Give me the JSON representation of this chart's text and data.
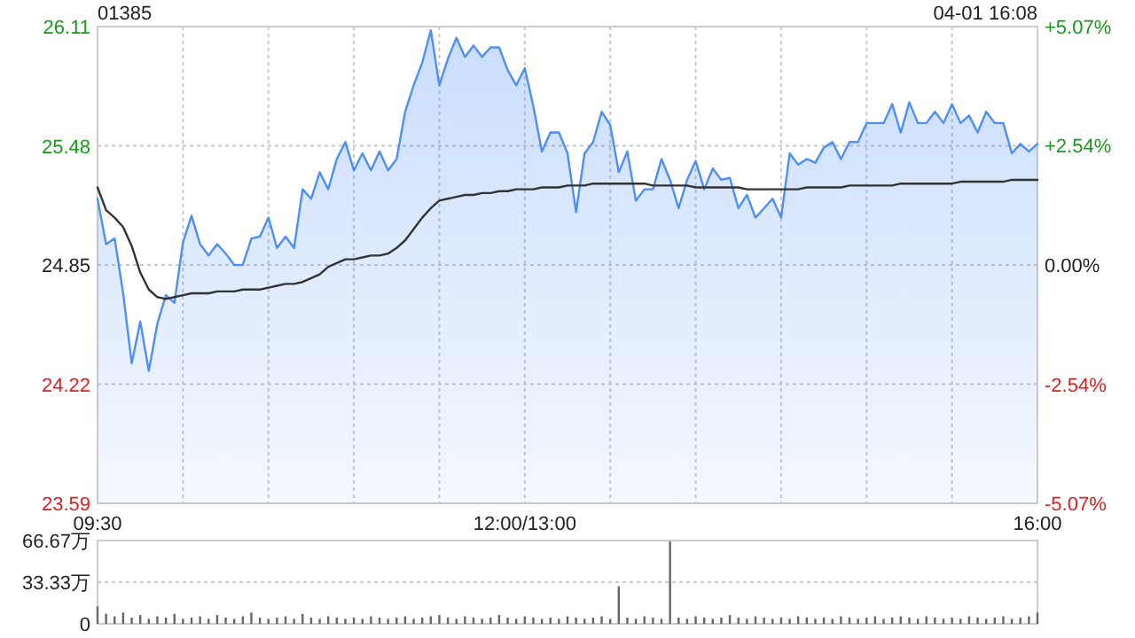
{
  "chart_data": [
    {
      "type": "line",
      "title": "01385",
      "annotations": [
        "04-01 16:08"
      ],
      "categories": [
        "09:30",
        null,
        null,
        null,
        null,
        null,
        null,
        null,
        null,
        null,
        null,
        null,
        null,
        null,
        null,
        null,
        null,
        null,
        null,
        null,
        null,
        null,
        null,
        null,
        null,
        null,
        null,
        null,
        null,
        null,
        null,
        null,
        null,
        null,
        null,
        null,
        null,
        null,
        null,
        null,
        null,
        null,
        null,
        null,
        null,
        null,
        null,
        null,
        null,
        null,
        "12:00/13:00",
        null,
        null,
        null,
        null,
        null,
        null,
        null,
        null,
        null,
        null,
        null,
        null,
        null,
        null,
        null,
        null,
        null,
        null,
        null,
        null,
        null,
        null,
        null,
        null,
        null,
        null,
        null,
        null,
        null,
        null,
        null,
        null,
        null,
        null,
        null,
        null,
        null,
        null,
        null,
        null,
        null,
        null,
        null,
        null,
        null,
        null,
        null,
        null,
        null,
        null,
        null,
        null,
        null,
        null,
        null,
        null,
        null,
        null,
        null,
        "16:00"
      ],
      "ylim": [
        23.59,
        26.11
      ],
      "yticks": [
        23.59,
        24.22,
        24.85,
        25.48,
        26.11
      ],
      "y2lim": [
        -5.07,
        5.07
      ],
      "y2ticks": [
        {
          "value": -5.07,
          "label": "-5.07%"
        },
        {
          "value": -2.54,
          "label": "-2.54%"
        },
        {
          "value": 0,
          "label": "0.00%"
        },
        {
          "value": 2.54,
          "label": "+2.54%"
        },
        {
          "value": 5.07,
          "label": "+5.07%"
        }
      ],
      "grid": true,
      "series": [
        {
          "type": "area",
          "color": "#4e8ef7",
          "values": [
            25.2,
            24.96,
            24.99,
            24.7,
            24.33,
            24.55,
            24.29,
            24.54,
            24.69,
            24.65,
            24.97,
            25.11,
            24.96,
            24.9,
            24.96,
            24.91,
            24.85,
            24.85,
            24.99,
            25.0,
            25.1,
            24.94,
            25.0,
            24.94,
            25.25,
            25.2,
            25.34,
            25.25,
            25.41,
            25.5,
            25.35,
            25.44,
            25.35,
            25.45,
            25.35,
            25.41,
            25.66,
            25.8,
            25.92,
            26.09,
            25.8,
            25.94,
            26.05,
            25.95,
            26.01,
            25.95,
            26.0,
            26.0,
            25.88,
            25.8,
            25.89,
            25.69,
            25.45,
            25.55,
            25.55,
            25.44,
            25.13,
            25.44,
            25.5,
            25.66,
            25.59,
            25.34,
            25.45,
            25.19,
            25.25,
            25.25,
            25.41,
            25.3,
            25.15,
            25.3,
            25.4,
            25.25,
            25.36,
            25.3,
            25.31,
            25.15,
            25.22,
            25.1,
            25.15,
            25.2,
            25.1,
            25.44,
            25.38,
            25.41,
            25.39,
            25.47,
            25.5,
            25.41,
            25.5,
            25.5,
            25.6,
            25.6,
            25.6,
            25.7,
            25.55,
            25.71,
            25.6,
            25.6,
            25.66,
            25.6,
            25.7,
            25.6,
            25.64,
            25.55,
            25.66,
            25.6,
            25.6,
            25.44,
            25.49,
            25.45,
            25.49
          ]
        },
        {
          "type": "line",
          "color": "#333333",
          "values": [
            25.26,
            25.14,
            25.1,
            25.05,
            24.95,
            24.81,
            24.72,
            24.68,
            24.67,
            24.68,
            24.69,
            24.7,
            24.7,
            24.7,
            24.71,
            24.71,
            24.71,
            24.72,
            24.72,
            24.72,
            24.73,
            24.74,
            24.75,
            24.75,
            24.76,
            24.78,
            24.8,
            24.84,
            24.86,
            24.88,
            24.88,
            24.89,
            24.9,
            24.9,
            24.91,
            24.94,
            24.98,
            25.04,
            25.1,
            25.15,
            25.19,
            25.2,
            25.21,
            25.22,
            25.22,
            25.23,
            25.23,
            25.24,
            25.24,
            25.25,
            25.25,
            25.25,
            25.26,
            25.26,
            25.26,
            25.27,
            25.27,
            25.27,
            25.28,
            25.28,
            25.28,
            25.28,
            25.28,
            25.28,
            25.28,
            25.27,
            25.27,
            25.27,
            25.27,
            25.27,
            25.26,
            25.26,
            25.26,
            25.26,
            25.26,
            25.26,
            25.25,
            25.25,
            25.25,
            25.25,
            25.25,
            25.25,
            25.25,
            25.26,
            25.26,
            25.26,
            25.26,
            25.26,
            25.27,
            25.27,
            25.27,
            25.27,
            25.27,
            25.27,
            25.28,
            25.28,
            25.28,
            25.28,
            25.28,
            25.28,
            25.28,
            25.29,
            25.29,
            25.29,
            25.29,
            25.29,
            25.29,
            25.3,
            25.3,
            25.3,
            25.3
          ]
        }
      ]
    },
    {
      "type": "bar",
      "categories": [
        null,
        null,
        null,
        null,
        null,
        null,
        null,
        null,
        null,
        null,
        null,
        null,
        null,
        null,
        null,
        null,
        null,
        null,
        null,
        null,
        null,
        null,
        null,
        null,
        null,
        null,
        null,
        null,
        null,
        null,
        null,
        null,
        null,
        null,
        null,
        null,
        null,
        null,
        null,
        null,
        null,
        null,
        null,
        null,
        null,
        null,
        null,
        null,
        null,
        null,
        null,
        null,
        null,
        null,
        null,
        null,
        null,
        null,
        null,
        null,
        null,
        null,
        null,
        null,
        null,
        null,
        null,
        null,
        null,
        null,
        null,
        null,
        null,
        null,
        null,
        null,
        null,
        null,
        null,
        null,
        null,
        null,
        null,
        null,
        null,
        null,
        null,
        null,
        null,
        null,
        null,
        null,
        null,
        null,
        null,
        null,
        null,
        null,
        null,
        null,
        null,
        null,
        null,
        null,
        null,
        null,
        null,
        null,
        null,
        null,
        null
      ],
      "ylim": [
        0,
        66.67
      ],
      "yticks": [
        0,
        {
          "value": 33.33,
          "label": "33.33万"
        },
        {
          "value": 66.67,
          "label": "66.67万"
        }
      ],
      "grid": "y",
      "tick_labels": "y",
      "series": [
        {
          "color": "#666666",
          "values": [
            14,
            8,
            6,
            9,
            5,
            7,
            4,
            6,
            5,
            8,
            4,
            5,
            6,
            4,
            7,
            5,
            4,
            6,
            9,
            5,
            4,
            5,
            6,
            4,
            8,
            5,
            4,
            6,
            5,
            4,
            5,
            4,
            6,
            5,
            4,
            5,
            6,
            4,
            5,
            6,
            7,
            5,
            4,
            6,
            5,
            4,
            5,
            7,
            5,
            4,
            6,
            5,
            4,
            5,
            4,
            6,
            5,
            4,
            5,
            6,
            4,
            30,
            5,
            4,
            6,
            5,
            4,
            66,
            5,
            4,
            6,
            5,
            4,
            5,
            7,
            5,
            4,
            6,
            5,
            4,
            5,
            4,
            6,
            5,
            4,
            5,
            4,
            6,
            5,
            4,
            5,
            6,
            4,
            5,
            6,
            5,
            4,
            6,
            5,
            4,
            5,
            4,
            6,
            5,
            4,
            5,
            6,
            4,
            5,
            6,
            9
          ]
        }
      ]
    }
  ]
}
